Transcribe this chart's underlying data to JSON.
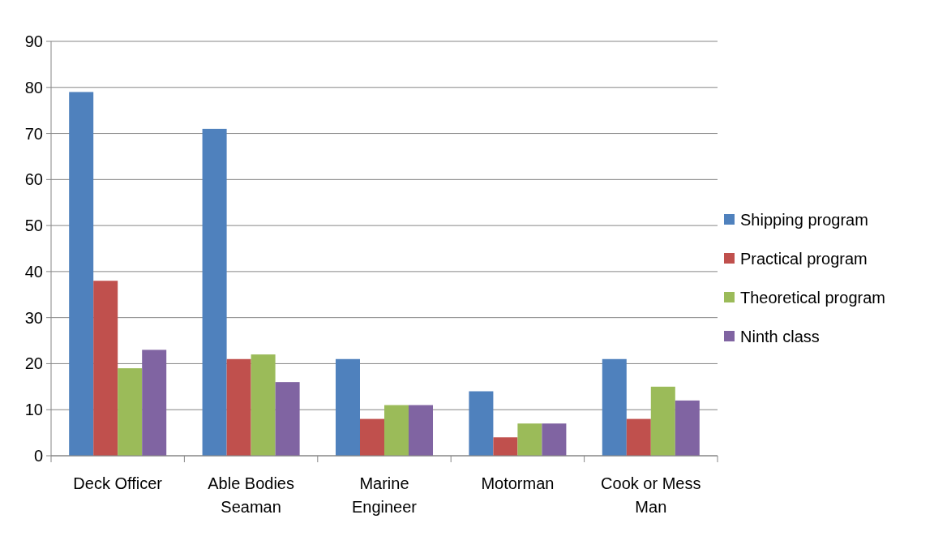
{
  "chart_data": {
    "type": "bar",
    "categories": [
      "Deck Officer",
      "Able Bodies Seaman",
      "Marine Engineer",
      "Motorman",
      "Cook or Mess Man"
    ],
    "series": [
      {
        "name": "Shipping program",
        "color": "#4f81bd",
        "values": [
          79,
          71,
          21,
          14,
          21
        ]
      },
      {
        "name": "Practical program",
        "color": "#c0504d",
        "values": [
          38,
          21,
          8,
          4,
          8
        ]
      },
      {
        "name": "Theoretical program",
        "color": "#9bbb59",
        "values": [
          19,
          22,
          11,
          7,
          15
        ]
      },
      {
        "name": "Ninth class",
        "color": "#8064a2",
        "values": [
          23,
          16,
          11,
          7,
          12
        ]
      }
    ],
    "ylim": [
      0,
      90
    ],
    "yticks": [
      0,
      10,
      20,
      30,
      40,
      50,
      60,
      70,
      80,
      90
    ],
    "grid": "y",
    "legend": "right"
  }
}
